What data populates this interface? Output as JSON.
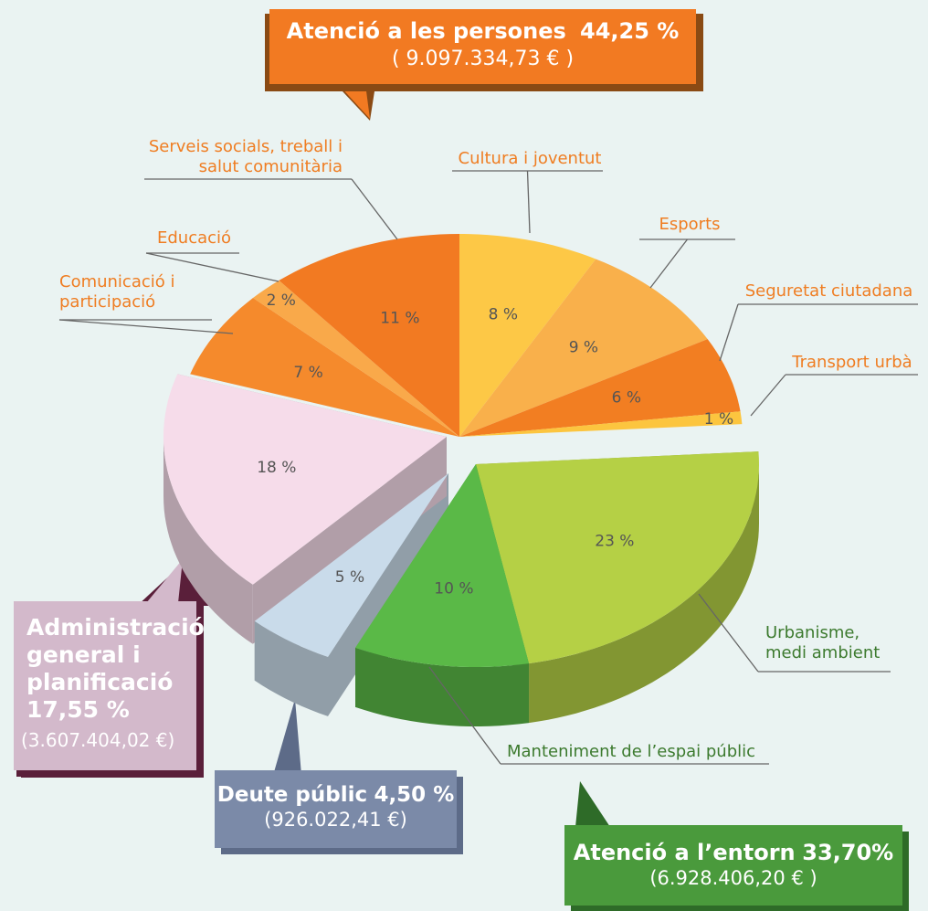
{
  "chart_data": {
    "type": "pie",
    "categories": [
      "Cultura i joventut",
      "Esports",
      "Seguretat ciutadana",
      "Transport urbà",
      "Urbanisme, medi ambient",
      "Manteniment de l’espai públic",
      null,
      null,
      "Comunicació i participació",
      "Educació",
      "Serveis socials, treball i salut comunitària"
    ],
    "values": [
      8,
      9,
      6,
      1,
      23,
      10,
      5,
      18,
      7,
      2,
      11
    ],
    "value_labels": [
      "8 %",
      "9 %",
      "6 %",
      "1 %",
      "23 %",
      "10 %",
      "5 %",
      "18 %",
      "7 %",
      "2 %",
      "11 %"
    ],
    "colors": [
      "#fdc846",
      "#f9b04b",
      "#f27e22",
      "#fcc53f",
      "#b5d045",
      "#5ab947",
      "#c9dbea",
      "#f6dcea",
      "#f58a2c",
      "#f9a94a",
      "#f27a22"
    ],
    "groups": [
      {
        "name": "Atenció a les persones",
        "share": "44,25 %",
        "amount": "( 9.097.334,73 € )"
      },
      {
        "name": "Administració general i planificació",
        "share": "17,55 %",
        "amount": "(3.607.404,02 €)"
      },
      {
        "name": "Deute públic",
        "share": "4,50 %",
        "amount": "(926.022,41 €)"
      },
      {
        "name": "Atenció a l’entorn",
        "share": "33,70%",
        "amount": "(6.928.406,20 € )"
      }
    ]
  }
}
